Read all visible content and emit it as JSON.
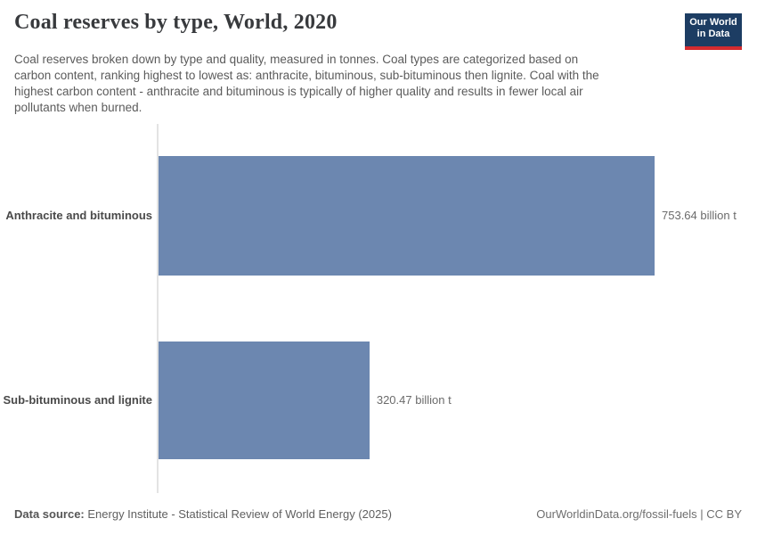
{
  "header": {
    "title": "Coal reserves by type, World, 2020",
    "subtitle_lines": [
      "Coal reserves broken down by type and quality, measured in tonnes. Coal types are categorized based on",
      "carbon content, ranking highest to lowest as: anthracite, bituminous, sub-bituminous then lignite. Coal with the",
      "highest carbon content - anthracite and bituminous is typically of higher quality and results in fewer local air",
      "pollutants when burned."
    ],
    "logo": {
      "line1": "Our World",
      "line2": "in Data",
      "bg_color": "#1d3d63",
      "stripe_color": "#d42b2f"
    }
  },
  "chart_data": {
    "type": "bar",
    "orientation": "horizontal",
    "title": "Coal reserves by type, World, 2020",
    "categories": [
      "Anthracite and bituminous",
      "Sub-bituminous and lignite"
    ],
    "values": [
      753.64,
      320.47
    ],
    "unit": "billion t",
    "value_labels": [
      "753.64 billion t",
      "320.47 billion t"
    ],
    "bar_color": "#6c87b0",
    "xlim": [
      0,
      753.64
    ],
    "grid": false,
    "legend": "none"
  },
  "footer": {
    "source_label": "Data source:",
    "source_text": "Energy Institute - Statistical Review of World Energy (2025)",
    "credit": "OurWorldinData.org/fossil-fuels | CC BY"
  }
}
